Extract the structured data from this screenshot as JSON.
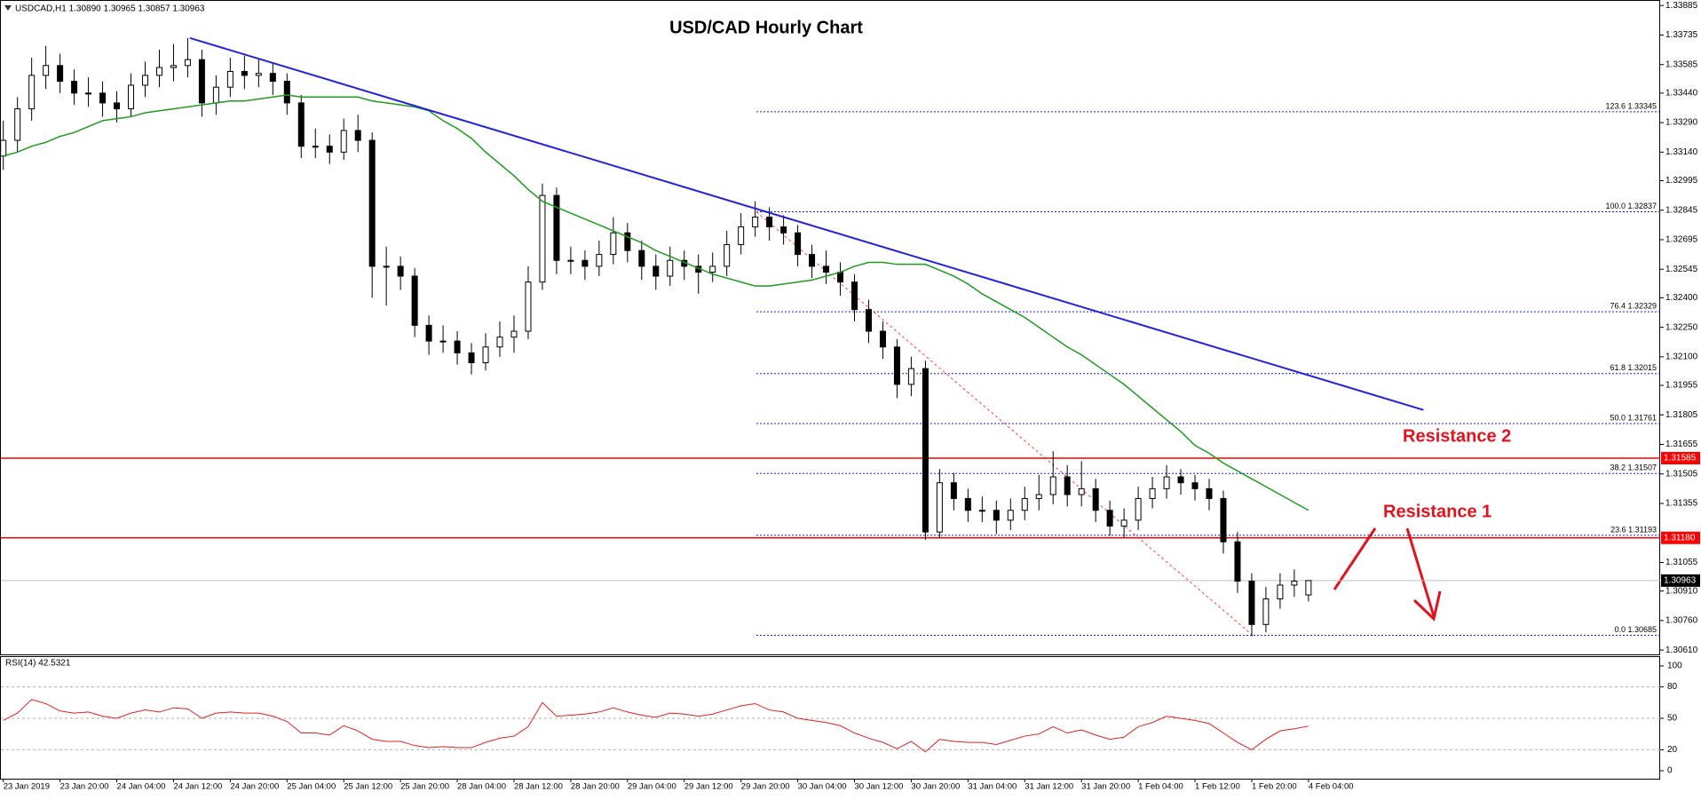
{
  "header": "USDCAD,H1  1.30890 1.30965 1.30857 1.30963",
  "chart_data": [
    {
      "type": "candlestick",
      "title": "USD/CAD Hourly Chart",
      "categories": [
        "23 Jan 2019",
        null,
        null,
        null,
        "23 Jan 20:00",
        null,
        null,
        null,
        "24 Jan 04:00",
        null,
        null,
        null,
        "24 Jan 12:00",
        null,
        null,
        null,
        "24 Jan 20:00",
        null,
        null,
        null,
        "25 Jan 04:00",
        null,
        null,
        null,
        "25 Jan 12:00",
        null,
        null,
        null,
        "25 Jan 20:00",
        null,
        null,
        null,
        "28 Jan 04:00",
        null,
        null,
        null,
        "28 Jan 12:00",
        null,
        null,
        null,
        "28 Jan 20:00",
        null,
        null,
        null,
        "29 Jan 04:00",
        null,
        null,
        null,
        "29 Jan 12:00",
        null,
        null,
        null,
        "29 Jan 20:00",
        null,
        null,
        null,
        "30 Jan 04:00",
        null,
        null,
        null,
        "30 Jan 12:00",
        null,
        null,
        null,
        "30 Jan 20:00",
        null,
        null,
        null,
        "31 Jan 04:00",
        null,
        null,
        null,
        "31 Jan 12:00",
        null,
        null,
        null,
        "31 Jan 20:00",
        null,
        null,
        null,
        "1 Feb 04:00",
        null,
        null,
        null,
        "1 Feb 12:00",
        null,
        null,
        null,
        "1 Feb 20:00",
        null,
        null,
        null,
        "4 Feb 04:00"
      ],
      "ohlc": [
        [
          1.3312,
          1.333,
          1.3305,
          1.332
        ],
        [
          1.332,
          1.3342,
          1.3314,
          1.3336
        ],
        [
          1.3336,
          1.3362,
          1.333,
          1.3353
        ],
        [
          1.3353,
          1.3368,
          1.3346,
          1.3358
        ],
        [
          1.3358,
          1.3364,
          1.3344,
          1.335
        ],
        [
          1.335,
          1.3356,
          1.3338,
          1.3344
        ],
        [
          1.3344,
          1.3352,
          1.3337,
          1.3344
        ],
        [
          1.3344,
          1.335,
          1.3332,
          1.3339
        ],
        [
          1.3339,
          1.3345,
          1.3329,
          1.3336
        ],
        [
          1.3336,
          1.3354,
          1.3332,
          1.3348
        ],
        [
          1.3348,
          1.336,
          1.3342,
          1.3353
        ],
        [
          1.3353,
          1.3366,
          1.3347,
          1.3357
        ],
        [
          1.3357,
          1.3369,
          1.335,
          1.3358
        ],
        [
          1.3358,
          1.3372,
          1.3352,
          1.3361
        ],
        [
          1.3361,
          1.3366,
          1.3332,
          1.3339
        ],
        [
          1.3339,
          1.3353,
          1.3333,
          1.3347
        ],
        [
          1.3347,
          1.3362,
          1.3342,
          1.3355
        ],
        [
          1.3355,
          1.3363,
          1.3346,
          1.3353
        ],
        [
          1.3353,
          1.3361,
          1.3347,
          1.3354
        ],
        [
          1.3354,
          1.3359,
          1.3343,
          1.335
        ],
        [
          1.335,
          1.3354,
          1.3333,
          1.3339
        ],
        [
          1.3339,
          1.3343,
          1.3311,
          1.3317
        ],
        [
          1.3317,
          1.3326,
          1.3311,
          1.3317
        ],
        [
          1.3317,
          1.3323,
          1.3308,
          1.3314
        ],
        [
          1.3314,
          1.3331,
          1.331,
          1.3325
        ],
        [
          1.3325,
          1.3333,
          1.3314,
          1.332
        ],
        [
          1.332,
          1.3324,
          1.324,
          1.3256
        ],
        [
          1.3256,
          1.3266,
          1.3236,
          1.3256
        ],
        [
          1.3256,
          1.3261,
          1.3244,
          1.3251
        ],
        [
          1.3251,
          1.3255,
          1.322,
          1.3226
        ],
        [
          1.3226,
          1.3231,
          1.3211,
          1.3218
        ],
        [
          1.3218,
          1.3226,
          1.3212,
          1.3218
        ],
        [
          1.3218,
          1.3223,
          1.3206,
          1.3212
        ],
        [
          1.3212,
          1.3217,
          1.3201,
          1.3207
        ],
        [
          1.3207,
          1.3222,
          1.3203,
          1.3215
        ],
        [
          1.3215,
          1.3228,
          1.321,
          1.322
        ],
        [
          1.322,
          1.3231,
          1.3212,
          1.3223
        ],
        [
          1.3223,
          1.3256,
          1.3219,
          1.3248
        ],
        [
          1.3248,
          1.3298,
          1.3244,
          1.3292
        ],
        [
          1.3292,
          1.3296,
          1.3252,
          1.3259
        ],
        [
          1.3259,
          1.3266,
          1.3252,
          1.3259
        ],
        [
          1.3259,
          1.3264,
          1.3249,
          1.3256
        ],
        [
          1.3256,
          1.3269,
          1.3251,
          1.3262
        ],
        [
          1.3262,
          1.3281,
          1.3257,
          1.3273
        ],
        [
          1.3273,
          1.3278,
          1.3258,
          1.3264
        ],
        [
          1.3264,
          1.3269,
          1.3249,
          1.3256
        ],
        [
          1.3256,
          1.3262,
          1.3244,
          1.3251
        ],
        [
          1.3251,
          1.3266,
          1.3246,
          1.3259
        ],
        [
          1.3259,
          1.3264,
          1.3249,
          1.3256
        ],
        [
          1.3256,
          1.3262,
          1.3242,
          1.3253
        ],
        [
          1.3253,
          1.3263,
          1.3248,
          1.3256
        ],
        [
          1.3256,
          1.3274,
          1.3251,
          1.3267
        ],
        [
          1.3267,
          1.3283,
          1.3262,
          1.3276
        ],
        [
          1.3276,
          1.3289,
          1.3271,
          1.3281
        ],
        [
          1.3281,
          1.3286,
          1.3269,
          1.3276
        ],
        [
          1.3276,
          1.3282,
          1.3267,
          1.3273
        ],
        [
          1.3273,
          1.3277,
          1.3256,
          1.3262
        ],
        [
          1.3262,
          1.3267,
          1.325,
          1.3256
        ],
        [
          1.3256,
          1.3264,
          1.3247,
          1.3253
        ],
        [
          1.3253,
          1.3258,
          1.3241,
          1.3248
        ],
        [
          1.3248,
          1.3252,
          1.3228,
          1.3234
        ],
        [
          1.3234,
          1.3239,
          1.3217,
          1.3223
        ],
        [
          1.3223,
          1.3228,
          1.3209,
          1.3215
        ],
        [
          1.3215,
          1.3219,
          1.3189,
          1.3196
        ],
        [
          1.3196,
          1.321,
          1.319,
          1.3204
        ],
        [
          1.3204,
          1.3208,
          1.3117,
          1.3121
        ],
        [
          1.3121,
          1.3153,
          1.3118,
          1.3146
        ],
        [
          1.3146,
          1.3151,
          1.3132,
          1.3138
        ],
        [
          1.3138,
          1.3143,
          1.3126,
          1.3132
        ],
        [
          1.3132,
          1.3139,
          1.3126,
          1.3132
        ],
        [
          1.3132,
          1.3137,
          1.312,
          1.3127
        ],
        [
          1.3127,
          1.3138,
          1.3122,
          1.3132
        ],
        [
          1.3132,
          1.3144,
          1.3127,
          1.3138
        ],
        [
          1.3138,
          1.315,
          1.3132,
          1.314
        ],
        [
          1.314,
          1.3162,
          1.3135,
          1.3149
        ],
        [
          1.3149,
          1.3155,
          1.3134,
          1.314
        ],
        [
          1.314,
          1.3157,
          1.3134,
          1.3143
        ],
        [
          1.3143,
          1.3148,
          1.3126,
          1.3132
        ],
        [
          1.3132,
          1.3137,
          1.3119,
          1.3124
        ],
        [
          1.3124,
          1.3133,
          1.3118,
          1.3127
        ],
        [
          1.3127,
          1.3144,
          1.3122,
          1.3138
        ],
        [
          1.3138,
          1.3149,
          1.3133,
          1.3143
        ],
        [
          1.3143,
          1.3155,
          1.3138,
          1.3149
        ],
        [
          1.3149,
          1.3153,
          1.314,
          1.3146
        ],
        [
          1.3146,
          1.315,
          1.3137,
          1.3143
        ],
        [
          1.3143,
          1.3148,
          1.3132,
          1.3138
        ],
        [
          1.3138,
          1.3142,
          1.311,
          1.3116
        ],
        [
          1.3116,
          1.3121,
          1.309,
          1.3096
        ],
        [
          1.3096,
          1.31,
          1.3068,
          1.3074
        ],
        [
          1.3074,
          1.3093,
          1.307,
          1.3087
        ],
        [
          1.3087,
          1.31,
          1.3082,
          1.3094
        ],
        [
          1.3094,
          1.3102,
          1.3088,
          1.3096
        ],
        [
          1.3089,
          1.30965,
          1.30857,
          1.30963
        ]
      ],
      "ma": {
        "color": "#1f9b1f",
        "values": [
          1.3312,
          1.3314,
          1.3317,
          1.3319,
          1.3322,
          1.3324,
          1.3327,
          1.333,
          1.3331,
          1.3332,
          1.3334,
          1.3335,
          1.3336,
          1.3337,
          1.3338,
          1.3339,
          1.334,
          1.334,
          1.3341,
          1.3342,
          1.3343,
          1.3342,
          1.3342,
          1.3342,
          1.3342,
          1.3342,
          1.334,
          1.3339,
          1.3338,
          1.3337,
          1.3335,
          1.333,
          1.3326,
          1.3321,
          1.3314,
          1.3308,
          1.3302,
          1.3295,
          1.3289,
          1.3286,
          1.3283,
          1.328,
          1.3277,
          1.3274,
          1.3271,
          1.3268,
          1.3264,
          1.3261,
          1.3258,
          1.3255,
          1.3252,
          1.325,
          1.3248,
          1.3246,
          1.3246,
          1.3247,
          1.3248,
          1.3249,
          1.3251,
          1.3253,
          1.3256,
          1.3258,
          1.3258,
          1.3257,
          1.3257,
          1.3257,
          1.3254,
          1.3251,
          1.3247,
          1.3242,
          1.3238,
          1.3234,
          1.323,
          1.3225,
          1.322,
          1.3215,
          1.3211,
          1.3206,
          1.3201,
          1.3196,
          1.319,
          1.3184,
          1.3178,
          1.3172,
          1.3165,
          1.3161,
          1.3156,
          1.3152,
          1.3148,
          1.3144,
          1.314,
          1.3136,
          1.3132
        ]
      },
      "trend_line": {
        "color": "#2222dd",
        "x": [
          13.15,
          100.1
        ],
        "y": [
          1.3372,
          1.3183
        ]
      },
      "fibonacci": {
        "color": "#1e1ec8",
        "levels": [
          {
            "value": 1.33345,
            "label": "123.6 1.33345"
          },
          {
            "value": 1.32837,
            "label": "100.0 1.32837"
          },
          {
            "value": 1.32329,
            "label": "76.4 1.32329"
          },
          {
            "value": 1.32015,
            "label": "61.8 1.32015"
          },
          {
            "value": 1.31761,
            "label": "50.0 1.31761"
          },
          {
            "value": 1.31507,
            "label": "38.2 1.31507"
          },
          {
            "value": 1.31193,
            "label": "23.6 1.31193"
          },
          {
            "value": 1.30685,
            "label": "0.0 1.30685"
          }
        ]
      },
      "hlines": [
        {
          "value": 1.31585,
          "label": "1.31585",
          "color": "#ff0000"
        },
        {
          "value": 1.3118,
          "label": "1.31180",
          "color": "#ff0000"
        },
        {
          "value": 1.30963,
          "label": "1.30963",
          "color": "#000000"
        }
      ],
      "annotations": [
        "Resistance 2",
        "Resistance 1"
      ],
      "ylim": [
        1.30588,
        1.33913
      ],
      "yticks": [
        1.33885,
        1.33735,
        1.33585,
        {
          "value": 1.3344,
          "label": "1.33440"
        },
        {
          "value": 1.3329,
          "label": "1.33290"
        },
        {
          "value": 1.3314,
          "label": "1.33140"
        },
        1.32995,
        1.32845,
        1.32695,
        1.32545,
        {
          "value": 1.324,
          "label": "1.32400"
        },
        {
          "value": 1.3225,
          "label": "1.32250"
        },
        {
          "value": 1.321,
          "label": "1.32100"
        },
        1.31955,
        1.31805,
        1.31655,
        1.31505,
        1.31355,
        1.31055,
        {
          "value": 1.3091,
          "label": "1.30910"
        },
        {
          "value": 1.3076,
          "label": "1.30760"
        },
        {
          "value": 1.3061,
          "label": "1.30610"
        }
      ]
    },
    {
      "type": "line",
      "label": "RSI(14) 42.5321",
      "color": "#e02020",
      "values": [
        48,
        55,
        68,
        64,
        57,
        55,
        56,
        52,
        50,
        55,
        58,
        56,
        60,
        59,
        50,
        55,
        56,
        55,
        55,
        52,
        47,
        36,
        36,
        34,
        43,
        38,
        30,
        28,
        28,
        24,
        22,
        23,
        22,
        22,
        27,
        31,
        33,
        42,
        65,
        52,
        53,
        54,
        56,
        60,
        56,
        53,
        51,
        55,
        54,
        52,
        54,
        58,
        62,
        64,
        58,
        56,
        50,
        48,
        46,
        43,
        36,
        31,
        27,
        21,
        28,
        18,
        30,
        28,
        27,
        27,
        25,
        29,
        33,
        35,
        42,
        36,
        39,
        34,
        30,
        32,
        42,
        46,
        52,
        50,
        48,
        45,
        36,
        27,
        20,
        30,
        38,
        40,
        42.5321
      ],
      "ylim": [
        0,
        100
      ],
      "yticks": [
        100,
        80,
        50,
        20,
        0
      ]
    }
  ]
}
